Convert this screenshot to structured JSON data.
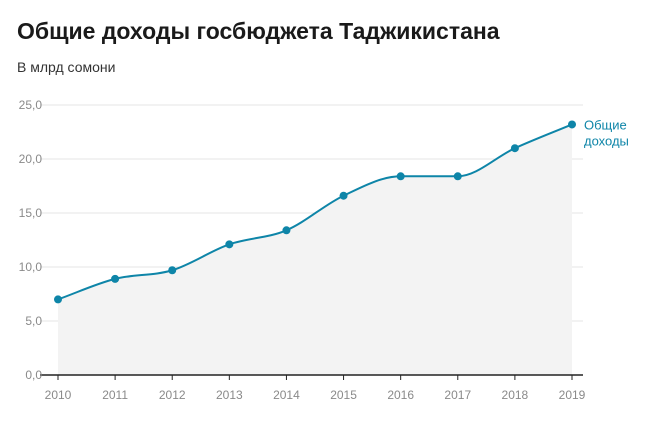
{
  "header": {
    "title": "Общие доходы госбюджета Таджикистана",
    "subtitle": "В млрд сомони"
  },
  "chart_data": {
    "type": "area",
    "title": "Общие доходы госбюджета Таджикистана",
    "subtitle": "В млрд сомони",
    "xlabel": "",
    "ylabel": "",
    "categories": [
      "2010",
      "2011",
      "2012",
      "2013",
      "2014",
      "2015",
      "2016",
      "2017",
      "2018",
      "2019"
    ],
    "series": [
      {
        "name": "Общие доходы",
        "label_lines": [
          "Общие",
          "доходы"
        ],
        "color": "#0e85a8",
        "values": [
          7.0,
          8.9,
          9.7,
          12.1,
          13.4,
          16.6,
          18.4,
          18.4,
          21.0,
          23.2
        ]
      }
    ],
    "yticks": [
      "0,0",
      "5,0",
      "10,0",
      "15,0",
      "20,0",
      "25,0"
    ],
    "ylim": [
      0,
      25
    ],
    "grid": true,
    "fill_color": "#f3f3f3",
    "legend": "inline label at end of line"
  }
}
